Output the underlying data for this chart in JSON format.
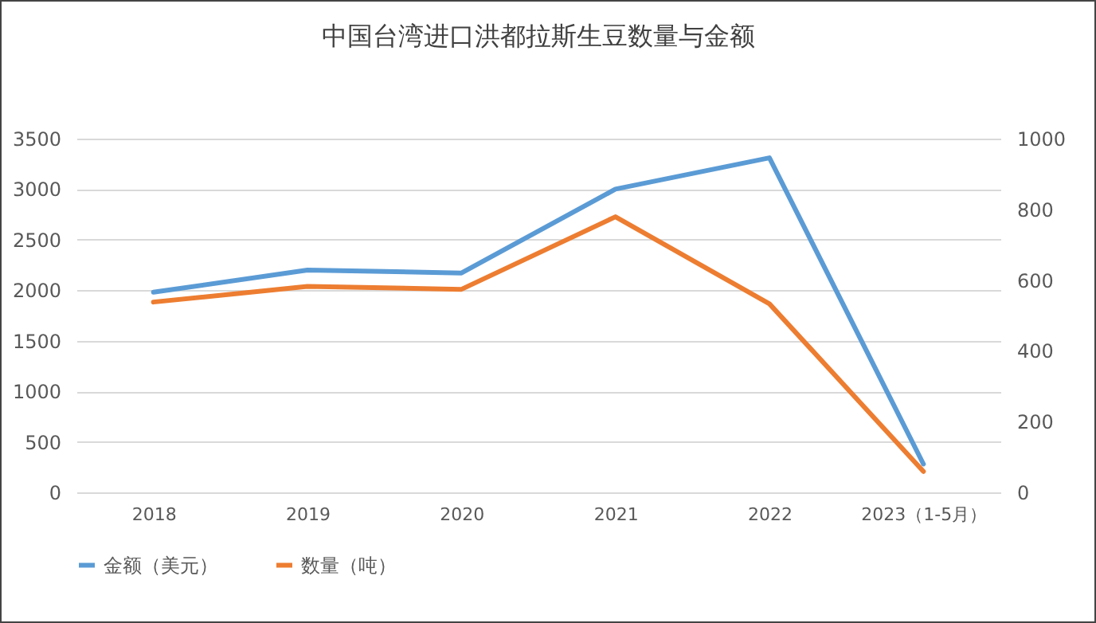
{
  "chart_data": {
    "type": "line",
    "title": "中国台湾进口洪都拉斯生豆数量与金额",
    "categories": [
      "2018",
      "2019",
      "2020",
      "2021",
      "2022",
      "2023（1-5月）"
    ],
    "series": [
      {
        "name": "金额（美元）",
        "color": "#5b9bd5",
        "values": [
          1980,
          2200,
          2170,
          3000,
          3310,
          280
        ]
      },
      {
        "name": "数量（吨）",
        "color": "#ed7d31",
        "axis": "y2",
        "values": [
          538,
          582,
          574,
          779,
          533,
          59
        ]
      }
    ],
    "ylim": [
      0,
      3500
    ],
    "yticks": [
      0,
      500,
      1000,
      1500,
      2000,
      2500,
      3000,
      3500
    ],
    "y2lim": [
      0,
      1000
    ],
    "y2ticks": [
      0,
      200,
      400,
      600,
      800,
      1000
    ],
    "grid": "y",
    "legend": "bottom",
    "marker": "none",
    "line_style": "solid"
  }
}
